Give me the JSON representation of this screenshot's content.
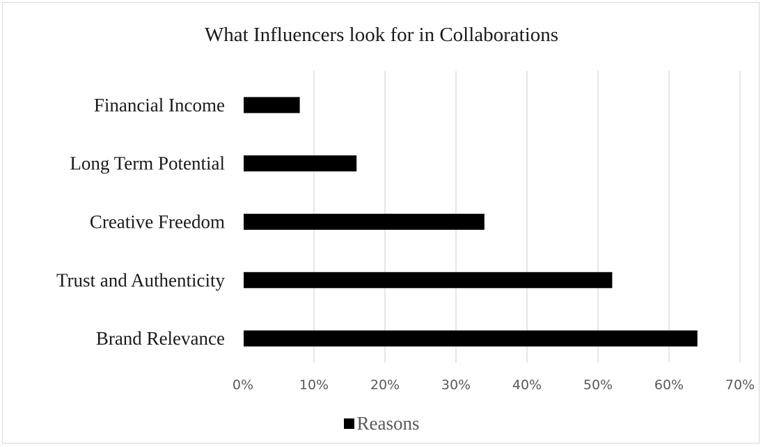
{
  "chart_data": {
    "type": "bar",
    "orientation": "horizontal",
    "title": "What Influencers look for in Collaborations",
    "categories": [
      "Brand Relevance",
      "Trust and Authenticity",
      "Creative Freedom",
      "Long Term Potential",
      "Financial Income"
    ],
    "series": [
      {
        "name": "Reasons",
        "values": [
          64,
          52,
          34,
          16,
          8
        ],
        "color": "#000000"
      }
    ],
    "xlim": [
      0,
      70
    ],
    "xticks": [
      "0%",
      "10%",
      "20%",
      "30%",
      "40%",
      "50%",
      "60%",
      "70%"
    ],
    "xlabel": "",
    "ylabel": "",
    "grid": "vertical",
    "legend_position": "bottom"
  }
}
